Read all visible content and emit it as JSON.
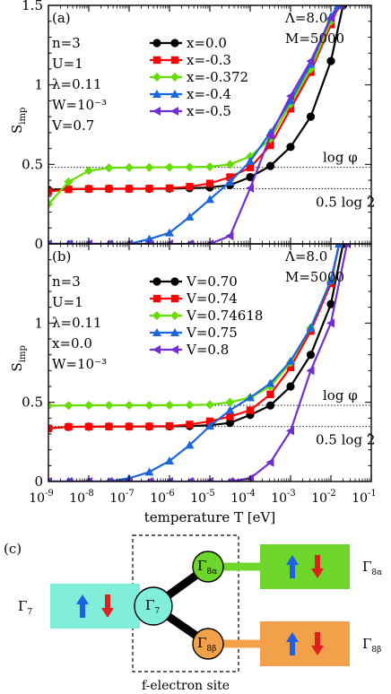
{
  "chart_data": [
    {
      "type": "line",
      "panel_label": "(a)",
      "ylabel": "S",
      "ylabel_sub": "imp",
      "xscale": "log",
      "xlim": [
        1e-09,
        0.1
      ],
      "ylim": [
        0,
        1.5
      ],
      "yticks": [
        "0",
        "0.5",
        "1",
        "1.5"
      ],
      "grid": false,
      "legend": "top-center",
      "params": [
        "n=3",
        "U=1",
        "λ=0.11",
        "W=10⁻³",
        "V=0.7"
      ],
      "params_right": [
        "Λ=8.0",
        "M=5000"
      ],
      "reference_lines": [
        {
          "label": "log φ",
          "y": 0.481
        },
        {
          "label": "0.5 log 2",
          "y": 0.347
        }
      ],
      "series": [
        {
          "name": "x=0.0",
          "color": "#000000",
          "marker": "circle",
          "x": [
            1e-09,
            3.16e-09,
            1e-08,
            3.16e-08,
            1e-07,
            3.16e-07,
            1e-06,
            3.16e-06,
            1e-05,
            3.16e-05,
            0.0001,
            0.000316,
            0.001,
            0.00316,
            0.01,
            0.02
          ],
          "y": [
            0.34,
            0.345,
            0.346,
            0.347,
            0.347,
            0.347,
            0.348,
            0.35,
            0.355,
            0.37,
            0.42,
            0.49,
            0.61,
            0.8,
            1.15,
            1.5
          ]
        },
        {
          "name": "x=-0.3",
          "color": "#ff0000",
          "marker": "square",
          "x": [
            1e-09,
            3.16e-09,
            1e-08,
            3.16e-08,
            1e-07,
            3.16e-07,
            1e-06,
            3.16e-06,
            1e-05,
            3.16e-05,
            0.0001,
            0.000316,
            0.001,
            0.00316,
            0.01,
            0.016
          ],
          "y": [
            0.33,
            0.343,
            0.346,
            0.347,
            0.347,
            0.348,
            0.35,
            0.36,
            0.38,
            0.42,
            0.48,
            0.62,
            0.85,
            1.08,
            1.38,
            1.5
          ]
        },
        {
          "name": "x=-0.372",
          "color": "#66dd00",
          "marker": "diamond",
          "x": [
            1e-09,
            3.16e-09,
            1e-08,
            3.16e-08,
            1e-07,
            3.16e-07,
            1e-06,
            3.16e-06,
            1e-05,
            3.16e-05,
            0.0001,
            0.000316,
            0.001,
            0.00316,
            0.01,
            0.016
          ],
          "y": [
            0.25,
            0.39,
            0.46,
            0.478,
            0.48,
            0.481,
            0.482,
            0.483,
            0.485,
            0.5,
            0.55,
            0.66,
            0.88,
            1.1,
            1.4,
            1.5
          ]
        },
        {
          "name": "x=-0.4",
          "color": "#1a66dd",
          "marker": "triangle-up",
          "x": [
            1e-09,
            3.16e-09,
            1e-08,
            3.16e-08,
            1e-07,
            3.16e-07,
            1e-06,
            3.16e-06,
            1e-05,
            3.16e-05,
            0.0001,
            0.000316,
            0.001,
            0.00316,
            0.01,
            0.015
          ],
          "y": [
            0.0,
            0.0,
            0.0,
            0.0,
            0.0,
            0.03,
            0.07,
            0.17,
            0.28,
            0.39,
            0.52,
            0.7,
            0.9,
            1.13,
            1.43,
            1.5
          ]
        },
        {
          "name": "x=-0.5",
          "color": "#7030d0",
          "marker": "triangle-left",
          "x": [
            1e-09,
            3.16e-09,
            1e-08,
            3.16e-08,
            1e-07,
            3.16e-07,
            1e-06,
            3.16e-06,
            1e-05,
            3.16e-05,
            0.0001,
            0.000316,
            0.001,
            0.00316,
            0.01,
            0.018
          ],
          "y": [
            0.0,
            0.0,
            0.0,
            0.0,
            0.0,
            0.0,
            0.0,
            0.0,
            0.0,
            0.05,
            0.35,
            0.68,
            0.93,
            1.15,
            1.42,
            1.5
          ]
        }
      ]
    },
    {
      "type": "line",
      "panel_label": "(b)",
      "ylabel": "S",
      "ylabel_sub": "imp",
      "xlabel": "temperature T [eV]",
      "xscale": "log",
      "xlim": [
        1e-09,
        0.1
      ],
      "ylim": [
        0,
        1.5
      ],
      "yticks": [
        "0",
        "0.5",
        "1"
      ],
      "xticks": [
        "10",
        "10",
        "10",
        "10",
        "10",
        "10",
        "10",
        "10",
        "10"
      ],
      "xtick_exponents": [
        "-9",
        "-8",
        "-7",
        "-6",
        "-5",
        "-4",
        "-3",
        "-2",
        "-1"
      ],
      "grid": false,
      "legend": "top-center",
      "params": [
        "n=3",
        "U=1",
        "λ=0.11",
        "x=0.0",
        "W=10⁻³"
      ],
      "params_right": [
        "Λ=8.0",
        "M=5000"
      ],
      "reference_lines": [
        {
          "label": "log φ",
          "y": 0.481
        },
        {
          "label": "0.5 log 2",
          "y": 0.347
        }
      ],
      "series": [
        {
          "name": "V=0.70",
          "color": "#000000",
          "marker": "circle",
          "x": [
            1e-09,
            3.16e-09,
            1e-08,
            3.16e-08,
            1e-07,
            3.16e-07,
            1e-06,
            3.16e-06,
            1e-05,
            3.16e-05,
            0.0001,
            0.000316,
            0.001,
            0.00316,
            0.01,
            0.02
          ],
          "y": [
            0.335,
            0.345,
            0.346,
            0.347,
            0.347,
            0.347,
            0.348,
            0.35,
            0.355,
            0.37,
            0.42,
            0.48,
            0.6,
            0.8,
            1.12,
            1.5
          ]
        },
        {
          "name": "V=0.74",
          "color": "#ff0000",
          "marker": "square",
          "x": [
            1e-09,
            3.16e-09,
            1e-08,
            3.16e-08,
            1e-07,
            3.16e-07,
            1e-06,
            3.16e-06,
            1e-05,
            3.16e-05,
            0.0001,
            0.000316,
            0.001,
            0.00316,
            0.01,
            0.016
          ],
          "y": [
            0.335,
            0.345,
            0.346,
            0.347,
            0.347,
            0.348,
            0.35,
            0.36,
            0.38,
            0.41,
            0.45,
            0.55,
            0.72,
            0.95,
            1.25,
            1.5
          ]
        },
        {
          "name": "V=0.74618",
          "color": "#66dd00",
          "marker": "diamond",
          "x": [
            1e-09,
            3.16e-09,
            1e-08,
            3.16e-08,
            1e-07,
            3.16e-07,
            1e-06,
            3.16e-06,
            1e-05,
            3.16e-05,
            0.0001,
            0.000316,
            0.001,
            0.00316,
            0.01,
            0.016
          ],
          "y": [
            0.478,
            0.48,
            0.481,
            0.481,
            0.481,
            0.481,
            0.482,
            0.483,
            0.485,
            0.5,
            0.53,
            0.6,
            0.75,
            0.97,
            1.27,
            1.5
          ]
        },
        {
          "name": "V=0.75",
          "color": "#1a66dd",
          "marker": "triangle-up",
          "x": [
            1e-09,
            3.16e-09,
            1e-08,
            3.16e-08,
            1e-07,
            3.16e-07,
            1e-06,
            3.16e-06,
            1e-05,
            3.16e-05,
            0.0001,
            0.000316,
            0.001,
            0.00316,
            0.01,
            0.016
          ],
          "y": [
            0.0,
            0.0,
            0.0,
            0.0,
            0.02,
            0.06,
            0.13,
            0.23,
            0.35,
            0.45,
            0.53,
            0.62,
            0.76,
            0.97,
            1.27,
            1.5
          ]
        },
        {
          "name": "V=0.8",
          "color": "#7030d0",
          "marker": "triangle-left",
          "x": [
            1e-09,
            3.16e-09,
            1e-08,
            3.16e-08,
            1e-07,
            3.16e-07,
            1e-06,
            3.16e-06,
            1e-05,
            3.16e-05,
            0.0001,
            0.000316,
            0.001,
            0.00316,
            0.01,
            0.025
          ],
          "y": [
            0.0,
            0.0,
            0.0,
            0.0,
            0.0,
            0.0,
            0.0,
            0.0,
            0.0,
            0.0,
            0.02,
            0.12,
            0.32,
            0.7,
            1.0,
            1.5
          ]
        }
      ]
    }
  ],
  "diagram": {
    "panel_label": "(c)",
    "site_label": "f-electron site",
    "nodes": [
      {
        "id": "g7",
        "label": "Γ",
        "sub": "7",
        "color": "#80eed8"
      },
      {
        "id": "g8a",
        "label": "Γ",
        "sub": "8α",
        "color": "#6ed62a"
      },
      {
        "id": "g8b",
        "label": "Γ",
        "sub": "8β",
        "color": "#f3a04a"
      }
    ],
    "boxes": [
      {
        "id": "box-g7",
        "label": "Γ",
        "sub": "7",
        "color": "#80eed8"
      },
      {
        "id": "box-g8a",
        "label": "Γ",
        "sub": "8α",
        "color": "#6ed62a"
      },
      {
        "id": "box-g8b",
        "label": "Γ",
        "sub": "8β",
        "color": "#f3a04a"
      }
    ],
    "spin_up_color": "#1f5fe8",
    "spin_down_color": "#e02020"
  }
}
